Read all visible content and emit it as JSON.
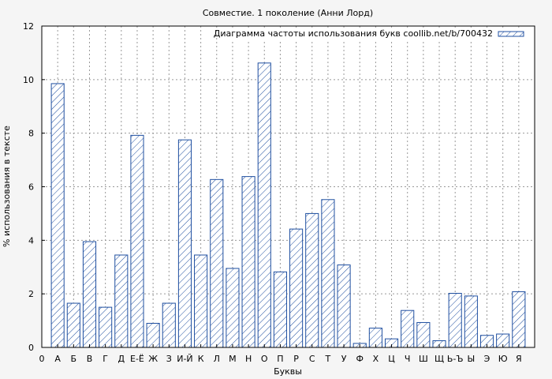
{
  "chart_data": {
    "type": "bar",
    "title": "Совместие. 1 поколение (Анни Лорд)",
    "xlabel": "Буквы",
    "ylabel": "% использования в тексте",
    "legend": "Диаграмма частоты использования букв coollib.net/b/700432",
    "legend_position": "top-right",
    "grid": true,
    "colors": {
      "bar_stroke": "#1f4fa0",
      "hatch": "#1f4fa0",
      "grid": "#999999",
      "background": "#f5f5f5"
    },
    "ylim": [
      0,
      12
    ],
    "yticks": [
      "0",
      "2",
      "4",
      "6",
      "8",
      "10",
      "12"
    ],
    "xtick_first": "0",
    "categories": [
      "А",
      "Б",
      "В",
      "Г",
      "Д",
      "Е-Ё",
      "Ж",
      "З",
      "И-Й",
      "К",
      "Л",
      "М",
      "Н",
      "О",
      "П",
      "Р",
      "С",
      "Т",
      "У",
      "Ф",
      "Х",
      "Ц",
      "Ч",
      "Ш",
      "Щ",
      "Ь-Ъ",
      "Ы",
      "Э",
      "Ю",
      "Я"
    ],
    "values": [
      9.85,
      1.65,
      3.95,
      1.5,
      3.45,
      7.92,
      0.9,
      1.65,
      7.75,
      3.45,
      6.27,
      2.95,
      6.38,
      10.62,
      2.82,
      4.42,
      5.0,
      5.52,
      3.08,
      0.15,
      0.72,
      0.32,
      1.38,
      0.93,
      0.25,
      2.02,
      1.92,
      0.45,
      0.5,
      2.08
    ]
  }
}
